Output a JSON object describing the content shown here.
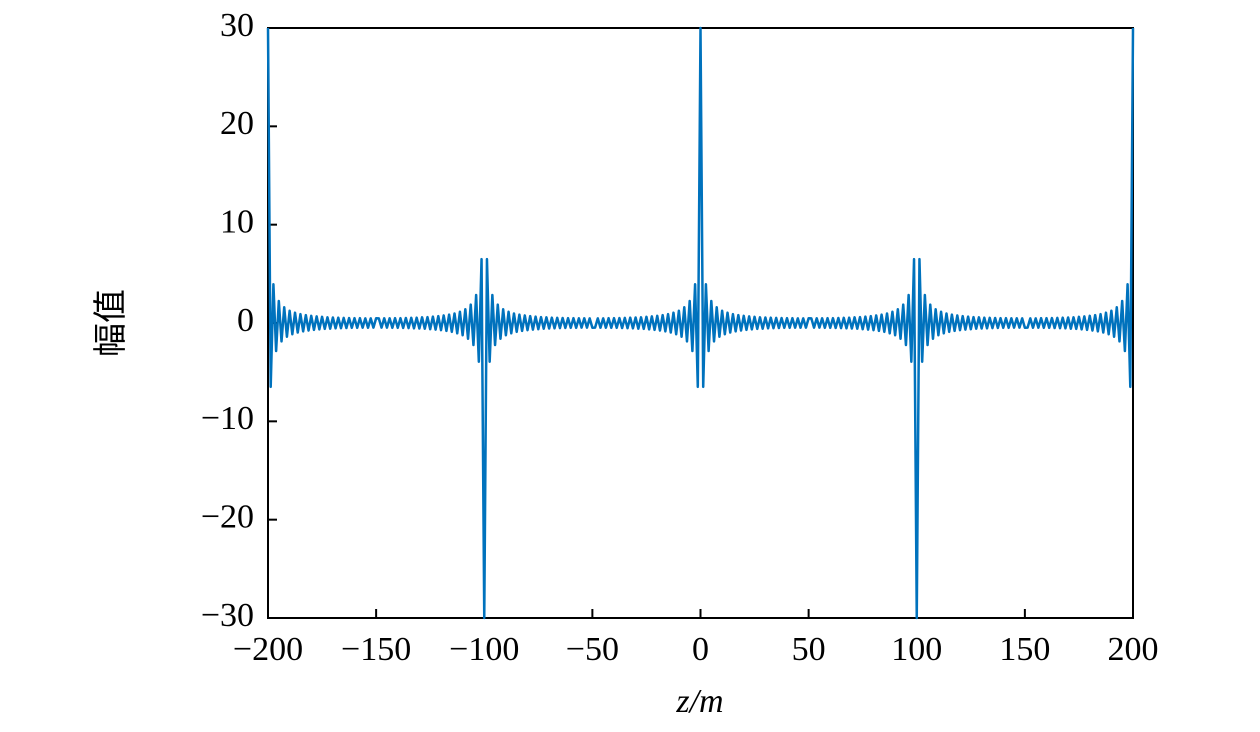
{
  "chart_data": {
    "type": "line",
    "xlabel": "z/m",
    "ylabel": "幅值",
    "color": "#0072bd",
    "xlim": [
      -200,
      200
    ],
    "ylim": [
      -30,
      30
    ],
    "xticks": [
      {
        "value": -200,
        "label": "−200"
      },
      {
        "value": -150,
        "label": "−150"
      },
      {
        "value": -100,
        "label": "−100"
      },
      {
        "value": -50,
        "label": "−50"
      },
      0,
      50,
      100,
      150,
      200
    ],
    "yticks": [
      {
        "value": -30,
        "label": "−30"
      },
      {
        "value": -20,
        "label": "−20"
      },
      {
        "value": -10,
        "label": "−10"
      },
      0,
      10,
      20,
      30
    ],
    "x": [
      -200,
      -198.75,
      -197.5,
      -196.25,
      -195,
      -193.75,
      -192.5,
      -191.25,
      -190,
      -188.75,
      -187.5,
      -186.25,
      -185,
      -183.75,
      -182.5,
      -181.25,
      -180,
      -178.75,
      -177.5,
      -176.25,
      -175,
      -173.75,
      -172.5,
      -171.25,
      -170,
      -168.75,
      -167.5,
      -166.25,
      -165,
      -163.75,
      -162.5,
      -161.25,
      -160,
      -158.75,
      -157.5,
      -156.25,
      -155,
      -153.75,
      -152.5,
      -151.25,
      -150,
      -148.75,
      -147.5,
      -146.25,
      -145,
      -143.75,
      -142.5,
      -141.25,
      -140,
      -138.75,
      -137.5,
      -136.25,
      -135,
      -133.75,
      -132.5,
      -131.25,
      -130,
      -128.75,
      -127.5,
      -126.25,
      -125,
      -123.75,
      -122.5,
      -121.25,
      -120,
      -118.75,
      -117.5,
      -116.25,
      -115,
      -113.75,
      -112.5,
      -111.25,
      -110,
      -108.75,
      -107.5,
      -106.25,
      -105,
      -103.75,
      -102.5,
      -101.25,
      -100,
      -98.75,
      -97.5,
      -96.25,
      -95,
      -93.75,
      -92.5,
      -91.25,
      -90,
      -88.75,
      -87.5,
      -86.25,
      -85,
      -83.75,
      -82.5,
      -81.25,
      -80,
      -78.75,
      -77.5,
      -76.25,
      -75,
      -73.75,
      -72.5,
      -71.25,
      -70,
      -68.75,
      -67.5,
      -66.25,
      -65,
      -63.75,
      -62.5,
      -61.25,
      -60,
      -58.75,
      -57.5,
      -56.25,
      -55,
      -53.75,
      -52.5,
      -51.25,
      -50,
      -48.75,
      -47.5,
      -46.25,
      -45,
      -43.75,
      -42.5,
      -41.25,
      -40,
      -38.75,
      -37.5,
      -36.25,
      -35,
      -33.75,
      -32.5,
      -31.25,
      -30,
      -28.75,
      -27.5,
      -26.25,
      -25,
      -23.75,
      -22.5,
      -21.25,
      -20,
      -18.75,
      -17.5,
      -16.25,
      -15,
      -13.75,
      -12.5,
      -11.25,
      -10,
      -8.75,
      -7.5,
      -6.25,
      -5,
      -3.75,
      -2.5,
      -1.25,
      0,
      1.25,
      2.5,
      3.75,
      5,
      6.25,
      7.5,
      8.75,
      10,
      11.25,
      12.5,
      13.75,
      15,
      16.25,
      17.5,
      18.75,
      20,
      21.25,
      22.5,
      23.75,
      25,
      26.25,
      27.5,
      28.75,
      30,
      31.25,
      32.5,
      33.75,
      35,
      36.25,
      37.5,
      38.75,
      40,
      41.25,
      42.5,
      43.75,
      45,
      46.25,
      47.5,
      48.75,
      50,
      51.25,
      52.5,
      53.75,
      55,
      56.25,
      57.5,
      58.75,
      60,
      61.25,
      62.5,
      63.75,
      65,
      66.25,
      67.5,
      68.75,
      70,
      71.25,
      72.5,
      73.75,
      75,
      76.25,
      77.5,
      78.75,
      80,
      81.25,
      82.5,
      83.75,
      85,
      86.25,
      87.5,
      88.75,
      90,
      91.25,
      92.5,
      93.75,
      95,
      96.25,
      97.5,
      98.75,
      100,
      101.25,
      102.5,
      103.75,
      105,
      106.25,
      107.5,
      108.75,
      110,
      111.25,
      112.5,
      113.75,
      115,
      116.25,
      117.5,
      118.75,
      120,
      121.25,
      122.5,
      123.75,
      125,
      126.25,
      127.5,
      128.75,
      130,
      131.25,
      132.5,
      133.75,
      135,
      136.25,
      137.5,
      138.75,
      140,
      141.25,
      142.5,
      143.75,
      145,
      146.25,
      147.5,
      148.75,
      150,
      151.25,
      152.5,
      153.75,
      155,
      156.25,
      157.5,
      158.75,
      160,
      161.25,
      162.5,
      163.75,
      165,
      166.25,
      167.5,
      168.75,
      170,
      171.25,
      172.5,
      173.75,
      175,
      176.25,
      177.5,
      178.75,
      180,
      181.25,
      182.5,
      183.75,
      185,
      186.25,
      187.5,
      188.75,
      190,
      191.25,
      192.5,
      193.75,
      195,
      196.25,
      197.5,
      198.75,
      200
    ],
    "values": [
      30,
      -6.49,
      3.94,
      -2.85,
      2.24,
      -1.87,
      1.6,
      -1.4,
      1.25,
      -1.14,
      1.05,
      -0.97,
      0.9,
      -0.85,
      0.8,
      -0.77,
      0.73,
      -0.7,
      0.67,
      -0.65,
      0.63,
      -0.6,
      0.58,
      -0.58,
      0.56,
      -0.54,
      0.54,
      -0.53,
      0.52,
      -0.51,
      0.5,
      -0.49,
      0.49,
      -0.49,
      0.49,
      -0.48,
      0.47,
      -0.48,
      0.47,
      -0.47,
      0.48,
      0.47,
      -0.47,
      0.48,
      -0.47,
      0.48,
      -0.49,
      0.49,
      -0.49,
      0.49,
      -0.5,
      0.51,
      -0.52,
      0.53,
      -0.54,
      0.54,
      -0.56,
      0.58,
      -0.58,
      0.6,
      -0.63,
      0.65,
      -0.67,
      0.7,
      -0.73,
      0.77,
      -0.8,
      0.85,
      -0.9,
      0.97,
      -1.05,
      1.14,
      -1.25,
      1.4,
      -1.6,
      1.87,
      -2.24,
      2.85,
      -3.94,
      6.49,
      -30,
      6.49,
      -3.94,
      2.85,
      -2.24,
      1.87,
      -1.6,
      1.4,
      -1.25,
      1.14,
      -1.05,
      0.97,
      -0.9,
      0.85,
      -0.8,
      0.77,
      -0.73,
      0.7,
      -0.67,
      0.65,
      -0.63,
      0.6,
      -0.58,
      0.58,
      -0.56,
      0.54,
      -0.54,
      0.53,
      -0.52,
      0.51,
      -0.5,
      0.49,
      -0.49,
      0.49,
      -0.49,
      0.48,
      -0.47,
      0.48,
      -0.47,
      0.47,
      -0.48,
      -0.47,
      0.47,
      -0.48,
      0.47,
      -0.48,
      0.49,
      -0.49,
      0.49,
      -0.49,
      0.5,
      -0.51,
      0.52,
      -0.53,
      0.54,
      -0.54,
      0.56,
      -0.58,
      0.58,
      -0.6,
      0.63,
      -0.65,
      0.67,
      -0.7,
      0.73,
      -0.77,
      0.8,
      -0.85,
      0.9,
      -0.97,
      1.05,
      -1.14,
      1.25,
      -1.4,
      1.6,
      -1.87,
      2.24,
      -2.85,
      3.94,
      -6.49,
      30,
      -6.49,
      3.94,
      -2.85,
      2.24,
      -1.87,
      1.6,
      -1.4,
      1.25,
      -1.14,
      1.05,
      -0.97,
      0.9,
      -0.85,
      0.8,
      -0.77,
      0.73,
      -0.7,
      0.67,
      -0.65,
      0.63,
      -0.6,
      0.58,
      -0.58,
      0.56,
      -0.54,
      0.54,
      -0.53,
      0.52,
      -0.51,
      0.5,
      -0.49,
      0.49,
      -0.49,
      0.49,
      -0.48,
      0.47,
      -0.48,
      0.47,
      -0.47,
      0.48,
      0.47,
      -0.47,
      0.48,
      -0.47,
      0.48,
      -0.49,
      0.49,
      -0.49,
      0.49,
      -0.5,
      0.51,
      -0.52,
      0.53,
      -0.54,
      0.54,
      -0.56,
      0.58,
      -0.58,
      0.6,
      -0.63,
      0.65,
      -0.67,
      0.7,
      -0.73,
      0.77,
      -0.8,
      0.85,
      -0.9,
      0.97,
      -1.05,
      1.14,
      -1.25,
      1.4,
      -1.6,
      1.87,
      -2.24,
      2.85,
      -3.94,
      6.49,
      -30,
      6.49,
      -3.94,
      2.85,
      -2.24,
      1.87,
      -1.6,
      1.4,
      -1.25,
      1.14,
      -1.05,
      0.97,
      -0.9,
      0.85,
      -0.8,
      0.77,
      -0.73,
      0.7,
      -0.67,
      0.65,
      -0.63,
      0.6,
      -0.58,
      0.58,
      -0.56,
      0.54,
      -0.54,
      0.53,
      -0.52,
      0.51,
      -0.5,
      0.49,
      -0.49,
      0.49,
      -0.49,
      0.48,
      -0.47,
      0.48,
      -0.47,
      0.47,
      -0.48,
      -0.47,
      0.47,
      -0.48,
      0.47,
      -0.48,
      0.49,
      -0.49,
      0.49,
      -0.49,
      0.5,
      -0.51,
      0.52,
      -0.53,
      0.54,
      -0.54,
      0.56,
      -0.58,
      0.58,
      -0.6,
      0.63,
      -0.65,
      0.67,
      -0.7,
      0.73,
      -0.77,
      0.8,
      -0.85,
      0.9,
      -0.97,
      1.05,
      -1.14,
      1.25,
      -1.4,
      1.6,
      -1.87,
      2.24,
      -2.85,
      3.94,
      -6.49,
      30
    ]
  }
}
